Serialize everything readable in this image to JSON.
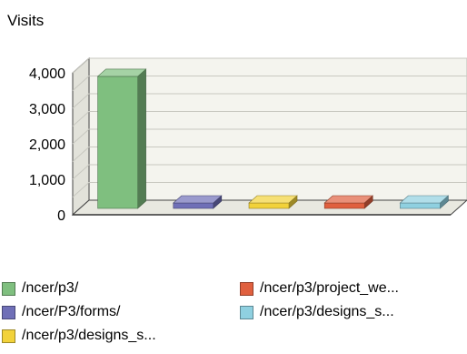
{
  "chart_data": {
    "type": "bar",
    "ylabel": "Visits",
    "categories": [
      "/ncer/p3/",
      "/ncer/P3/forms/",
      "/ncer/p3/designs_s...",
      "/ncer/p3/project_we...",
      "/ncer/p3/designs_s..."
    ],
    "values": [
      3950,
      100,
      70,
      60,
      60
    ],
    "colors": [
      "#7fbf7f",
      "#6f6fb7",
      "#f2d23a",
      "#e0603f",
      "#8fd0e0"
    ],
    "ylim": [
      0,
      4000
    ],
    "yticks": [
      0,
      1000,
      2000,
      3000,
      4000
    ],
    "ytick_labels": [
      "0",
      "1,000",
      "2,000",
      "3,000",
      "4,000"
    ],
    "grid": true,
    "legend_position": "bottom"
  }
}
